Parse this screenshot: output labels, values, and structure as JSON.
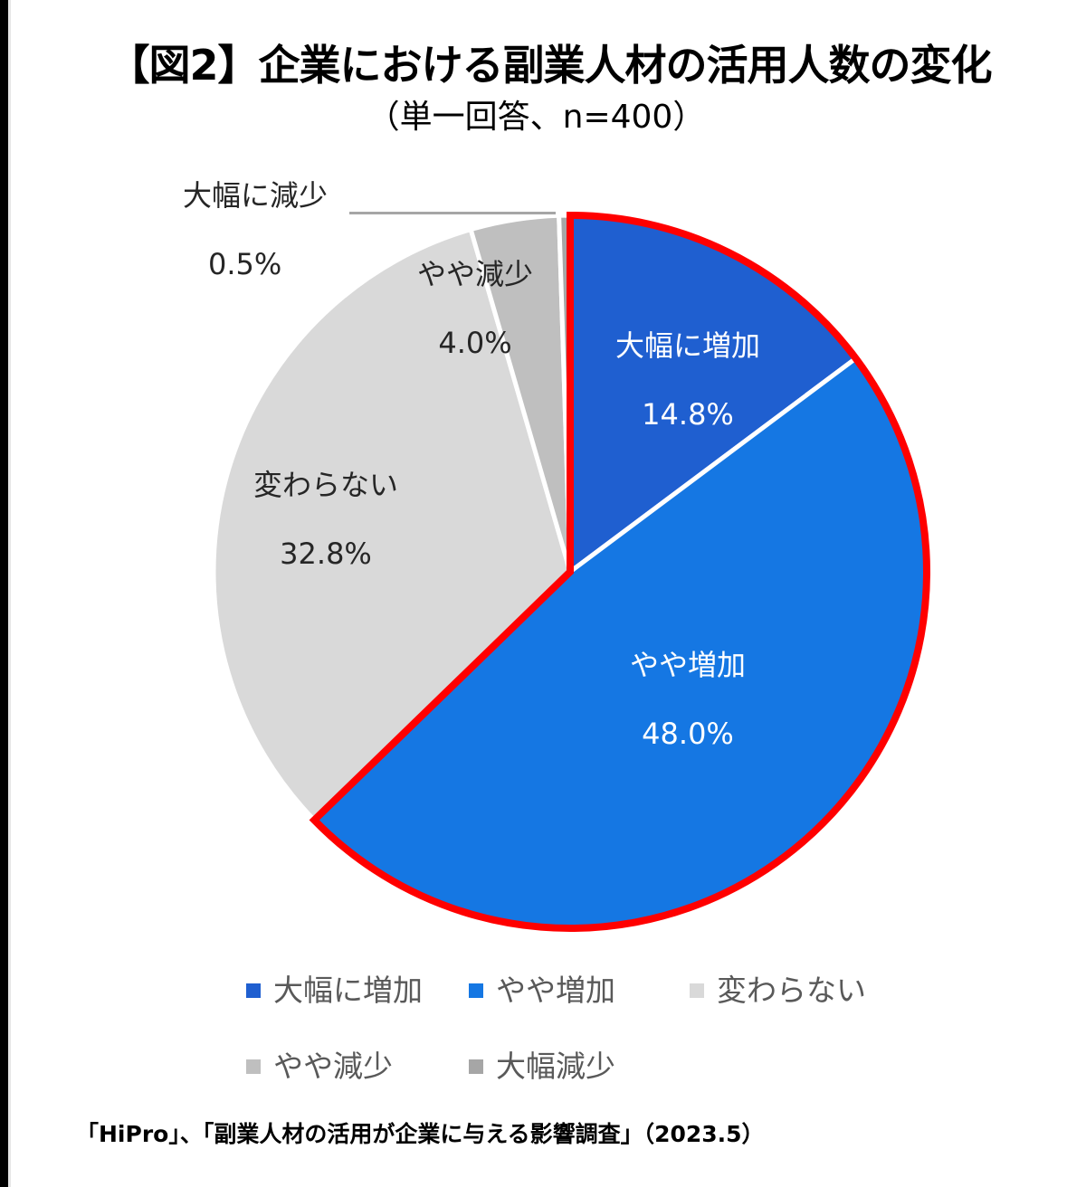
{
  "header": {
    "title": "【図2】企業における副業人材の活用人数の変化",
    "subtitle": "（単一回答、n=400）"
  },
  "chart_data": {
    "type": "pie",
    "title": "【図2】企業における副業人材の活用人数の変化",
    "subtitle": "（単一回答、n=400）",
    "categories": [
      "大幅に増加",
      "やや増加",
      "変わらない",
      "やや減少",
      "大幅に減少"
    ],
    "values": [
      14.8,
      48.0,
      32.8,
      4.0,
      0.5
    ],
    "unit": "%",
    "colors": [
      "#1f5fd0",
      "#1577e3",
      "#d9d9d9",
      "#bfbfbf",
      "#a6a6a6"
    ],
    "highlight": {
      "slices": [
        "大幅に増加",
        "やや増加"
      ],
      "outline_color": "#ff0000"
    },
    "start_angle": "12 o'clock",
    "direction": "clockwise",
    "legend_position": "bottom",
    "legend": [
      "大幅に増加",
      "やや増加",
      "変わらない",
      "やや減少",
      "大幅減少"
    ]
  },
  "slices": [
    {
      "label": "大幅に増加",
      "value": "14.8%"
    },
    {
      "label": "やや増加",
      "value": "48.0%"
    },
    {
      "label": "変わらない",
      "value": "32.8%"
    },
    {
      "label": "やや減少",
      "value": "4.0%"
    },
    {
      "label": "大幅に減少",
      "value": "0.5%"
    }
  ],
  "legend": [
    {
      "label": "大幅に増加",
      "color": "#1f5fd0"
    },
    {
      "label": "やや増加",
      "color": "#1577e3"
    },
    {
      "label": "変わらない",
      "color": "#d9d9d9"
    },
    {
      "label": "やや減少",
      "color": "#bfbfbf"
    },
    {
      "label": "大幅減少",
      "color": "#a6a6a6"
    }
  ],
  "source": "「HiPro」、「副業人材の活用が企業に与える影響調査」（2023.5）"
}
